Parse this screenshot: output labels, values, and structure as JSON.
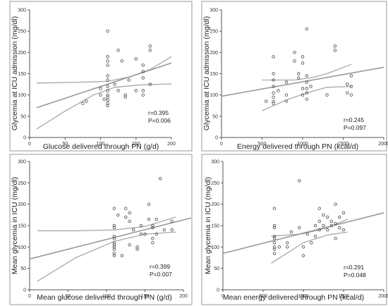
{
  "chart_data": [
    {
      "type": "scatter",
      "xlabel": "Glucose delivered through PN (g/d)",
      "ylabel": "Glycemia at ICU admission (mg/dl)",
      "xlim": [
        0,
        200
      ],
      "ylim": [
        0,
        300
      ],
      "xticks": [
        0,
        50,
        100,
        150,
        200
      ],
      "yticks": [
        0,
        50,
        100,
        150,
        200,
        250,
        300
      ],
      "stats": [
        "r=0.395",
        "P=0.006"
      ],
      "points": [
        [
          75,
          80
        ],
        [
          80,
          85
        ],
        [
          100,
          100
        ],
        [
          100,
          115
        ],
        [
          110,
          250
        ],
        [
          110,
          190
        ],
        [
          110,
          180
        ],
        [
          110,
          170
        ],
        [
          110,
          145
        ],
        [
          110,
          135
        ],
        [
          110,
          120
        ],
        [
          110,
          110
        ],
        [
          110,
          100
        ],
        [
          110,
          95
        ],
        [
          110,
          88
        ],
        [
          110,
          80
        ],
        [
          110,
          75
        ],
        [
          120,
          125
        ],
        [
          125,
          205
        ],
        [
          130,
          180
        ],
        [
          135,
          100
        ],
        [
          135,
          95
        ],
        [
          150,
          110
        ],
        [
          150,
          185
        ],
        [
          160,
          170
        ],
        [
          160,
          155
        ],
        [
          160,
          140
        ],
        [
          160,
          110
        ],
        [
          160,
          100
        ],
        [
          170,
          215
        ],
        [
          170,
          205
        ],
        [
          170,
          125
        ],
        [
          105,
          90
        ],
        [
          125,
          110
        ],
        [
          140,
          135
        ]
      ],
      "fit": [
        [
          10,
          70
        ],
        [
          200,
          175
        ]
      ],
      "ci_upper": [
        [
          10,
          128
        ],
        [
          70,
          130
        ],
        [
          110,
          132
        ],
        [
          140,
          142
        ],
        [
          170,
          160
        ],
        [
          200,
          190
        ]
      ],
      "ci_lower": [
        [
          10,
          20
        ],
        [
          50,
          62
        ],
        [
          90,
          100
        ],
        [
          120,
          118
        ],
        [
          160,
          124
        ],
        [
          200,
          126
        ]
      ]
    },
    {
      "type": "scatter",
      "xlabel": "Energy delivered through PN (kcal/d)",
      "ylabel": "Glycemia at ICU admission (mg/dl)",
      "xlim": [
        0,
        2000
      ],
      "ylim": [
        0,
        300
      ],
      "xticks": [
        0,
        500,
        1000,
        1500,
        2000
      ],
      "yticks": [
        0,
        50,
        100,
        150,
        200,
        250,
        300
      ],
      "stats": [
        "r=0.245",
        "P=0.097"
      ],
      "points": [
        [
          550,
          85
        ],
        [
          640,
          190
        ],
        [
          640,
          150
        ],
        [
          640,
          135
        ],
        [
          640,
          120
        ],
        [
          640,
          105
        ],
        [
          640,
          95
        ],
        [
          640,
          85
        ],
        [
          640,
          80
        ],
        [
          700,
          110
        ],
        [
          800,
          130
        ],
        [
          800,
          100
        ],
        [
          800,
          85
        ],
        [
          900,
          200
        ],
        [
          900,
          180
        ],
        [
          950,
          150
        ],
        [
          950,
          140
        ],
        [
          1000,
          190
        ],
        [
          1000,
          175
        ],
        [
          1000,
          115
        ],
        [
          1000,
          100
        ],
        [
          1050,
          255
        ],
        [
          1050,
          145
        ],
        [
          1050,
          130
        ],
        [
          1050,
          115
        ],
        [
          1050,
          105
        ],
        [
          1050,
          90
        ],
        [
          1100,
          120
        ],
        [
          1300,
          100
        ],
        [
          1400,
          215
        ],
        [
          1400,
          205
        ],
        [
          1550,
          125
        ],
        [
          1550,
          105
        ],
        [
          1600,
          145
        ],
        [
          1600,
          120
        ],
        [
          1600,
          100
        ]
      ],
      "fit": [
        [
          0,
          97
        ],
        [
          2000,
          165
        ]
      ],
      "ci_upper": [
        [
          500,
          135
        ],
        [
          900,
          135
        ],
        [
          1100,
          140
        ],
        [
          1300,
          150
        ],
        [
          1600,
          172
        ]
      ],
      "ci_lower": [
        [
          500,
          63
        ],
        [
          800,
          88
        ],
        [
          1050,
          105
        ],
        [
          1300,
          118
        ],
        [
          1600,
          120
        ]
      ]
    },
    {
      "type": "scatter",
      "xlabel": "Mean glucose delivered through PN (g/d)",
      "ylabel": "Mean glycemia in ICU (mg/dl)",
      "xlim": [
        0,
        200
      ],
      "ylim": [
        0,
        300
      ],
      "xticks": [
        0,
        50,
        100,
        150,
        200
      ],
      "yticks": [
        0,
        50,
        100,
        150,
        200,
        250,
        300
      ],
      "stats": [
        "r=0.399",
        "P=0.007"
      ],
      "points": [
        [
          110,
          190
        ],
        [
          110,
          150
        ],
        [
          110,
          145
        ],
        [
          110,
          125
        ],
        [
          110,
          120
        ],
        [
          110,
          110
        ],
        [
          110,
          105
        ],
        [
          110,
          100
        ],
        [
          110,
          95
        ],
        [
          110,
          85
        ],
        [
          110,
          80
        ],
        [
          115,
          175
        ],
        [
          120,
          80
        ],
        [
          125,
          190
        ],
        [
          125,
          170
        ],
        [
          130,
          180
        ],
        [
          130,
          160
        ],
        [
          135,
          140
        ],
        [
          140,
          100
        ],
        [
          140,
          95
        ],
        [
          145,
          150
        ],
        [
          145,
          130
        ],
        [
          150,
          130
        ],
        [
          155,
          200
        ],
        [
          155,
          165
        ],
        [
          160,
          150
        ],
        [
          160,
          145
        ],
        [
          160,
          120
        ],
        [
          160,
          110
        ],
        [
          165,
          165
        ],
        [
          165,
          130
        ],
        [
          170,
          260
        ],
        [
          175,
          140
        ],
        [
          185,
          160
        ],
        [
          185,
          140
        ],
        [
          130,
          105
        ]
      ],
      "fit": [
        [
          0,
          72
        ],
        [
          210,
          168
        ]
      ],
      "ci_upper": [
        [
          10,
          138
        ],
        [
          60,
          138
        ],
        [
          110,
          140
        ],
        [
          150,
          148
        ],
        [
          190,
          170
        ]
      ],
      "ci_lower": [
        [
          10,
          20
        ],
        [
          60,
          75
        ],
        [
          110,
          113
        ],
        [
          150,
          130
        ],
        [
          190,
          135
        ]
      ]
    },
    {
      "type": "scatter",
      "xlabel": "Mean energy delivered through PN (kcal/d)",
      "ylabel": "Mean glycemia in ICU (mg/dl)",
      "xlim": [
        0,
        2000
      ],
      "ylim": [
        0,
        300
      ],
      "xticks": [
        0,
        500,
        1000,
        1500,
        2000
      ],
      "yticks": [
        0,
        50,
        100,
        150,
        200,
        250,
        300
      ],
      "stats": [
        "r=0.291",
        "P=0.048"
      ],
      "points": [
        [
          640,
          190
        ],
        [
          640,
          150
        ],
        [
          640,
          145
        ],
        [
          640,
          125
        ],
        [
          640,
          120
        ],
        [
          640,
          110
        ],
        [
          640,
          100
        ],
        [
          640,
          95
        ],
        [
          640,
          85
        ],
        [
          700,
          100
        ],
        [
          800,
          110
        ],
        [
          800,
          100
        ],
        [
          850,
          135
        ],
        [
          950,
          255
        ],
        [
          950,
          145
        ],
        [
          1000,
          80
        ],
        [
          1000,
          100
        ],
        [
          1050,
          130
        ],
        [
          1100,
          110
        ],
        [
          1150,
          150
        ],
        [
          1150,
          125
        ],
        [
          1200,
          190
        ],
        [
          1200,
          160
        ],
        [
          1200,
          140
        ],
        [
          1250,
          175
        ],
        [
          1250,
          150
        ],
        [
          1300,
          170
        ],
        [
          1300,
          140
        ],
        [
          1350,
          160
        ],
        [
          1350,
          150
        ],
        [
          1400,
          200
        ],
        [
          1400,
          155
        ],
        [
          1400,
          120
        ],
        [
          1450,
          170
        ],
        [
          1450,
          145
        ],
        [
          1500,
          180
        ],
        [
          1500,
          140
        ]
      ],
      "fit": [
        [
          0,
          85
        ],
        [
          2000,
          180
        ]
      ],
      "ci_upper": [
        [
          600,
          125
        ],
        [
          1000,
          131
        ],
        [
          1300,
          145
        ],
        [
          1550,
          165
        ]
      ],
      "ci_lower": [
        [
          600,
          62
        ],
        [
          1000,
          110
        ],
        [
          1300,
          128
        ],
        [
          1550,
          135
        ]
      ]
    }
  ]
}
